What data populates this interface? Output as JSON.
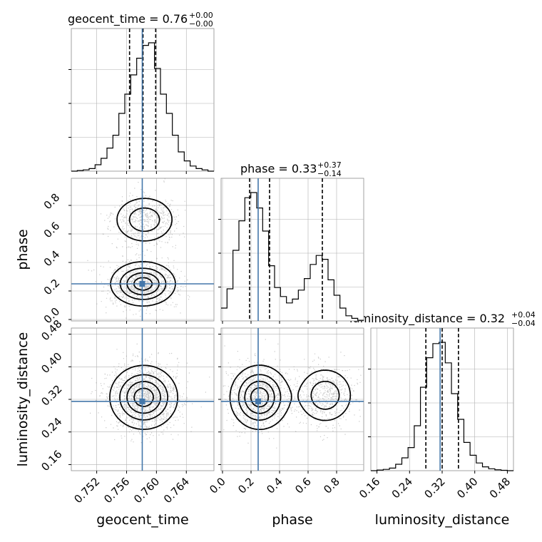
{
  "chart_data": {
    "type": "corner",
    "parameters": [
      "geocent_time",
      "phase",
      "luminosity_distance"
    ],
    "titles": [
      {
        "param": "geocent_time",
        "name": "geocent_time",
        "median": "0.76",
        "plus": "+0.00",
        "minus": "−0.00"
      },
      {
        "param": "phase",
        "name": "phase",
        "median": "0.33",
        "plus": "+0.37",
        "minus": "−0.14"
      },
      {
        "param": "luminosity_distance",
        "name": "luminosity_distance",
        "median": "0.32",
        "plus": "+0.04",
        "minus": "−0.04"
      }
    ],
    "ranges": {
      "geocent_time": [
        0.7486,
        0.7677
      ],
      "phase": [
        -0.01,
        0.99
      ],
      "luminosity_distance": [
        0.145,
        0.495
      ]
    },
    "ticks": {
      "geocent_time": [
        0.752,
        0.756,
        0.76,
        0.764
      ],
      "phase": [
        0.0,
        0.2,
        0.4,
        0.6,
        0.8
      ],
      "luminosity_distance": [
        0.16,
        0.24,
        0.32,
        0.4,
        0.48
      ]
    },
    "tick_labels": {
      "geocent_time": [
        "0.752",
        "0.756",
        "0.760",
        "0.764"
      ],
      "phase": [
        "0.0",
        "0.2",
        "0.4",
        "0.6",
        "0.8"
      ],
      "luminosity_distance": [
        "0.16",
        "0.24",
        "0.32",
        "0.40",
        "0.48"
      ]
    },
    "truths": {
      "geocent_time": 0.7581,
      "phase": 0.25,
      "luminosity_distance": 0.315
    },
    "quantiles": {
      "geocent_time": [
        0.7564,
        0.7582,
        0.7599
      ],
      "phase": [
        0.19,
        0.33,
        0.7
      ],
      "luminosity_distance": [
        0.28,
        0.32,
        0.36
      ]
    },
    "histograms": {
      "geocent_time": {
        "edges_range": [
          0.7486,
          0.7677
        ],
        "values": [
          0.0,
          0.005,
          0.01,
          0.02,
          0.05,
          0.1,
          0.18,
          0.28,
          0.45,
          0.6,
          0.75,
          0.88,
          0.98,
          1.0,
          0.8,
          0.6,
          0.45,
          0.28,
          0.15,
          0.08,
          0.04,
          0.02,
          0.01,
          0.0
        ]
      },
      "phase": {
        "edges_range": [
          -0.01,
          0.99
        ],
        "values": [
          0.1,
          0.25,
          0.55,
          0.78,
          0.96,
          1.0,
          0.88,
          0.7,
          0.43,
          0.26,
          0.19,
          0.14,
          0.17,
          0.24,
          0.33,
          0.44,
          0.51,
          0.48,
          0.32,
          0.2,
          0.1,
          0.04,
          0.02,
          0.005
        ]
      },
      "luminosity_distance": {
        "edges_range": [
          0.145,
          0.495
        ],
        "values": [
          0.0,
          0.005,
          0.01,
          0.02,
          0.05,
          0.1,
          0.18,
          0.35,
          0.65,
          0.88,
          0.99,
          1.0,
          0.84,
          0.6,
          0.4,
          0.22,
          0.12,
          0.06,
          0.03,
          0.015,
          0.007,
          0.003,
          0.0
        ]
      }
    },
    "density_2d": {
      "phase_vs_geocent_time": {
        "modes": [
          {
            "x": 0.7582,
            "y": 0.25,
            "sx": 0.0021,
            "sy": 0.075,
            "w": 1.0
          },
          {
            "x": 0.7584,
            "y": 0.7,
            "sx": 0.0021,
            "sy": 0.085,
            "w": 0.55
          }
        ]
      },
      "luminosity_distance_vs_geocent_time": {
        "modes": [
          {
            "x": 0.7583,
            "y": 0.325,
            "sx": 0.0022,
            "sy": 0.038,
            "w": 1.0
          }
        ]
      },
      "luminosity_distance_vs_phase": {
        "modes": [
          {
            "x": 0.26,
            "y": 0.325,
            "sx": 0.1,
            "sy": 0.038,
            "w": 1.0
          },
          {
            "x": 0.72,
            "y": 0.33,
            "sx": 0.1,
            "sy": 0.035,
            "w": 0.55
          }
        ]
      }
    },
    "colors": {
      "truth": "#4477aa",
      "hist": "#000000",
      "grid": "#b0b0b0",
      "scatter": "#9a9a9a"
    },
    "grid": true
  }
}
